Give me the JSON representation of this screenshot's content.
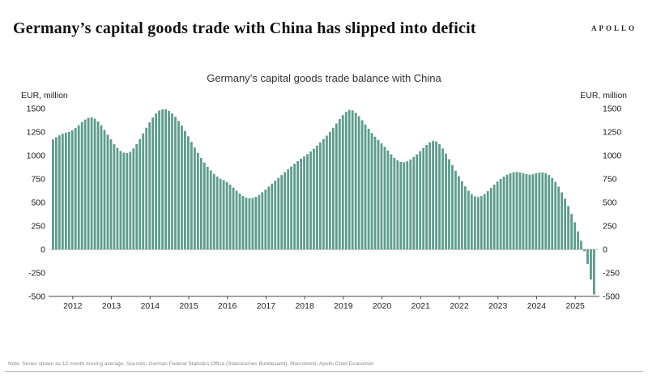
{
  "header": {
    "logo": "APOLLO",
    "headline": "Germany’s capital goods trade with China has slipped into deficit"
  },
  "chart": {
    "title": "Germany’s capital goods trade balance with China",
    "unit_left": "EUR, million",
    "unit_right": "EUR, million"
  },
  "footer": {
    "note": "Note: Series shown as 12-month moving average. Sources: German Federal Statistics Office (Statistisches Bundesamt), Macrobond, Apollo Chief Economist"
  },
  "chart_data": {
    "type": "bar",
    "title": "Germany’s capital goods trade balance with China",
    "ylabel": "EUR, million",
    "frequency": "monthly",
    "start": "2011-07",
    "bar_color": "#5d9c8d",
    "ylim": [
      -500,
      1500
    ],
    "y_ticks": [
      1500,
      1250,
      1000,
      750,
      500,
      250,
      0,
      -250,
      -500
    ],
    "x_tick_years": [
      2012,
      2013,
      2014,
      2015,
      2016,
      2017,
      2018,
      2019,
      2020,
      2021,
      2022,
      2023,
      2024,
      2025
    ],
    "grid": false,
    "legend": "none",
    "values": [
      1170,
      1195,
      1215,
      1230,
      1242,
      1252,
      1268,
      1292,
      1322,
      1355,
      1383,
      1400,
      1405,
      1392,
      1362,
      1322,
      1272,
      1222,
      1172,
      1122,
      1080,
      1048,
      1030,
      1025,
      1040,
      1075,
      1122,
      1175,
      1235,
      1295,
      1352,
      1405,
      1448,
      1478,
      1492,
      1490,
      1475,
      1448,
      1412,
      1368,
      1318,
      1262,
      1205,
      1145,
      1085,
      1028,
      975,
      925,
      880,
      840,
      805,
      775,
      752,
      738,
      718,
      690,
      658,
      625,
      595,
      570,
      552,
      545,
      548,
      560,
      580,
      608,
      638,
      668,
      700,
      732,
      762,
      792,
      822,
      852,
      882,
      912,
      940,
      966,
      990,
      1015,
      1042,
      1072,
      1105,
      1140,
      1175,
      1212,
      1252,
      1295,
      1340,
      1388,
      1430,
      1465,
      1485,
      1480,
      1455,
      1418,
      1375,
      1330,
      1285,
      1240,
      1200,
      1165,
      1130,
      1092,
      1052,
      1012,
      975,
      948,
      932,
      928,
      938,
      958,
      985,
      1012,
      1045,
      1080,
      1112,
      1140,
      1155,
      1150,
      1120,
      1075,
      1020,
      960,
      898,
      838,
      780,
      725,
      672,
      625,
      588,
      565,
      558,
      568,
      590,
      620,
      655,
      690,
      722,
      750,
      775,
      795,
      812,
      822,
      825,
      820,
      812,
      802,
      796,
      800,
      810,
      818,
      820,
      812,
      792,
      760,
      718,
      668,
      608,
      540,
      462,
      378,
      288,
      192,
      92,
      -20,
      -155,
      -320,
      -480
    ]
  }
}
